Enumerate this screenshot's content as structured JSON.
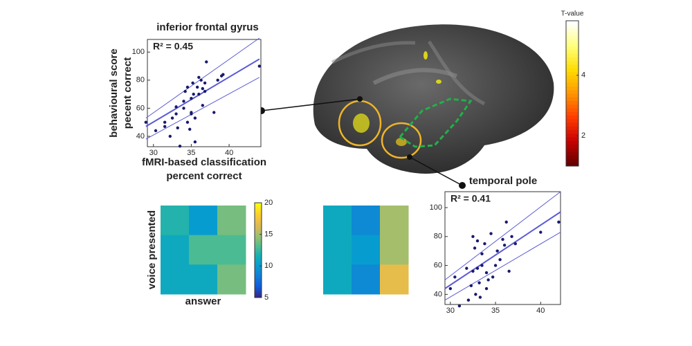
{
  "chart_data": [
    {
      "type": "scatter",
      "title": "inferior frontal gyrus",
      "annotation": "R² = 0.45",
      "xlabel": [
        "fMRI-based classification",
        "percent correct"
      ],
      "ylabel": [
        "behavioural score",
        "pecent correct"
      ],
      "xlim": [
        29.2,
        44.2
      ],
      "xticks": [
        30,
        35,
        40
      ],
      "ylim": [
        32.6,
        109
      ],
      "yticks": [
        40,
        60,
        80,
        100
      ],
      "color": "#1a1a6e",
      "x": [
        29,
        30.3,
        31.5,
        31.5,
        32.2,
        32.5,
        33,
        33,
        33.2,
        33.5,
        34,
        34,
        34.2,
        34.5,
        34.5,
        34.8,
        35,
        35,
        35,
        35.2,
        35.3,
        35.5,
        35.5,
        35.8,
        36,
        36,
        36.3,
        36.5,
        36.5,
        36.8,
        36.8,
        37,
        38,
        38.5,
        39,
        39.2,
        44
      ],
      "y": [
        50,
        44,
        47,
        50,
        40,
        53,
        56,
        61,
        46,
        33,
        60,
        65,
        72,
        75,
        50,
        45,
        56,
        57,
        67,
        78,
        70,
        53,
        36,
        75,
        82,
        70,
        80,
        62,
        74,
        72,
        78,
        93,
        57,
        80,
        83,
        84,
        90
      ],
      "fit": {
        "x": [
          29,
          44
        ],
        "y": [
          47,
          95
        ]
      },
      "ci_upper": {
        "x": [
          29,
          44
        ],
        "y": [
          53,
          110
        ]
      },
      "ci_lower": {
        "x": [
          29,
          44
        ],
        "y": [
          38,
          82
        ]
      }
    },
    {
      "type": "scatter",
      "title": "temporal pole",
      "annotation": "R² = 0.41",
      "xlim": [
        29.4,
        42.2
      ],
      "xticks": [
        30,
        35,
        40
      ],
      "ylim": [
        33,
        111
      ],
      "yticks": [
        40,
        60,
        80,
        100
      ],
      "color": "#1a1a6e",
      "x": [
        30,
        30.5,
        31,
        31.8,
        32,
        32.3,
        32.5,
        32.5,
        32.7,
        32.8,
        33,
        33,
        33.2,
        33.3,
        33.5,
        33.5,
        33.8,
        34,
        34,
        34.2,
        34.5,
        34.7,
        35,
        35.2,
        35.5,
        35.8,
        36,
        36.2,
        36.5,
        36.8,
        37.2,
        40,
        42
      ],
      "y": [
        44,
        52,
        32,
        58,
        36,
        46,
        80,
        56,
        72,
        40,
        77,
        58,
        48,
        38,
        68,
        60,
        75,
        44,
        55,
        50,
        82,
        52,
        60,
        70,
        64,
        78,
        74,
        90,
        56,
        80,
        75,
        83,
        90
      ],
      "fit": {
        "x": [
          29.4,
          42.2
        ],
        "y": [
          44,
          97
        ]
      },
      "ci_upper": {
        "x": [
          29.4,
          42.2
        ],
        "y": [
          50,
          111
        ]
      },
      "ci_lower": {
        "x": [
          29.4,
          42.2
        ],
        "y": [
          36,
          83
        ]
      }
    },
    {
      "type": "heatmap",
      "xlabel": "answer",
      "ylabel": "voice presented",
      "clim": [
        5,
        20
      ],
      "cticks": [
        5,
        10,
        15,
        20
      ],
      "values": [
        [
          12,
          10,
          14
        ],
        [
          11,
          13,
          13
        ],
        [
          11,
          11,
          14
        ]
      ]
    },
    {
      "type": "heatmap",
      "clim": [
        5,
        20
      ],
      "values": [
        [
          11,
          9,
          15
        ],
        [
          11,
          10,
          15
        ],
        [
          11,
          9,
          17
        ]
      ]
    },
    {
      "type": "colorbar",
      "title": "T-value",
      "clim": [
        1,
        5.8
      ],
      "cticks": [
        2,
        4
      ]
    }
  ]
}
